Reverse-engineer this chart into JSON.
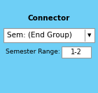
{
  "bg_color": "#6ecff6",
  "title": "Connector",
  "title_fontsize": 7.5,
  "title_fontweight": "bold",
  "dropdown_label": "Sem: (End Group)",
  "dropdown_arrow": "▼",
  "dropdown_fontsize": 7.5,
  "range_label": "Semester Range:",
  "range_label_fontsize": 6.5,
  "range_value": "1-2",
  "range_value_fontsize": 7,
  "box_bg": "#ffffff",
  "box_edge": "#999999",
  "text_color": "#000000",
  "fig_width": 1.4,
  "fig_height": 1.32,
  "dpi": 100
}
